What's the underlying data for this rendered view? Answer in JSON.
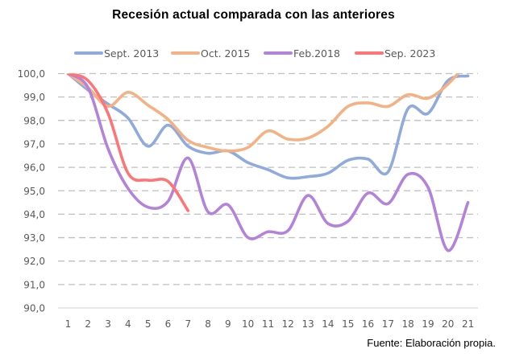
{
  "chart_data": {
    "type": "line",
    "title": "Recesión actual comparada con las anteriores",
    "xlabel": "",
    "ylabel": "",
    "categories": [
      "1",
      "2",
      "3",
      "4",
      "5",
      "6",
      "7",
      "8",
      "9",
      "10",
      "11",
      "12",
      "13",
      "14",
      "15",
      "16",
      "17",
      "18",
      "19",
      "20",
      "21"
    ],
    "ylim": [
      90,
      100
    ],
    "yticks": [
      "90,0",
      "91,0",
      "92,0",
      "93,0",
      "94,0",
      "95,0",
      "96,0",
      "97,0",
      "98,0",
      "99,0",
      "100,0"
    ],
    "ytick_values": [
      90,
      91,
      92,
      93,
      94,
      95,
      96,
      97,
      98,
      99,
      100
    ],
    "grid": "horizontal-dashed",
    "legend_position": "top",
    "smooth": true,
    "series": [
      {
        "name": "Sept. 2013",
        "color": "#8faadc",
        "values": [
          100.0,
          99.3,
          98.7,
          98.1,
          96.9,
          97.8,
          96.9,
          96.6,
          96.7,
          96.2,
          95.9,
          95.55,
          95.6,
          95.75,
          96.3,
          96.35,
          95.8,
          98.5,
          98.3,
          99.7,
          99.9
        ]
      },
      {
        "name": "Oct. 2015",
        "color": "#f4b183",
        "values": [
          100.0,
          99.4,
          98.6,
          99.2,
          98.65,
          98.05,
          97.15,
          96.85,
          96.7,
          96.85,
          97.55,
          97.2,
          97.25,
          97.75,
          98.6,
          98.75,
          98.6,
          99.1,
          98.95,
          99.55,
          100.5
        ]
      },
      {
        "name": "Feb.2018",
        "color": "#b383db",
        "values": [
          100.0,
          99.4,
          96.8,
          95.1,
          94.3,
          94.55,
          96.4,
          94.1,
          94.4,
          93.0,
          93.25,
          93.3,
          94.8,
          93.6,
          93.7,
          94.9,
          94.45,
          95.7,
          95.15,
          92.45,
          94.5
        ]
      },
      {
        "name": "Sep. 2023",
        "color": "#ff7575",
        "values": [
          100.0,
          99.7,
          98.3,
          95.75,
          95.45,
          95.4,
          94.15
        ]
      }
    ]
  },
  "source_note": "Fuente: Elaboración propia."
}
